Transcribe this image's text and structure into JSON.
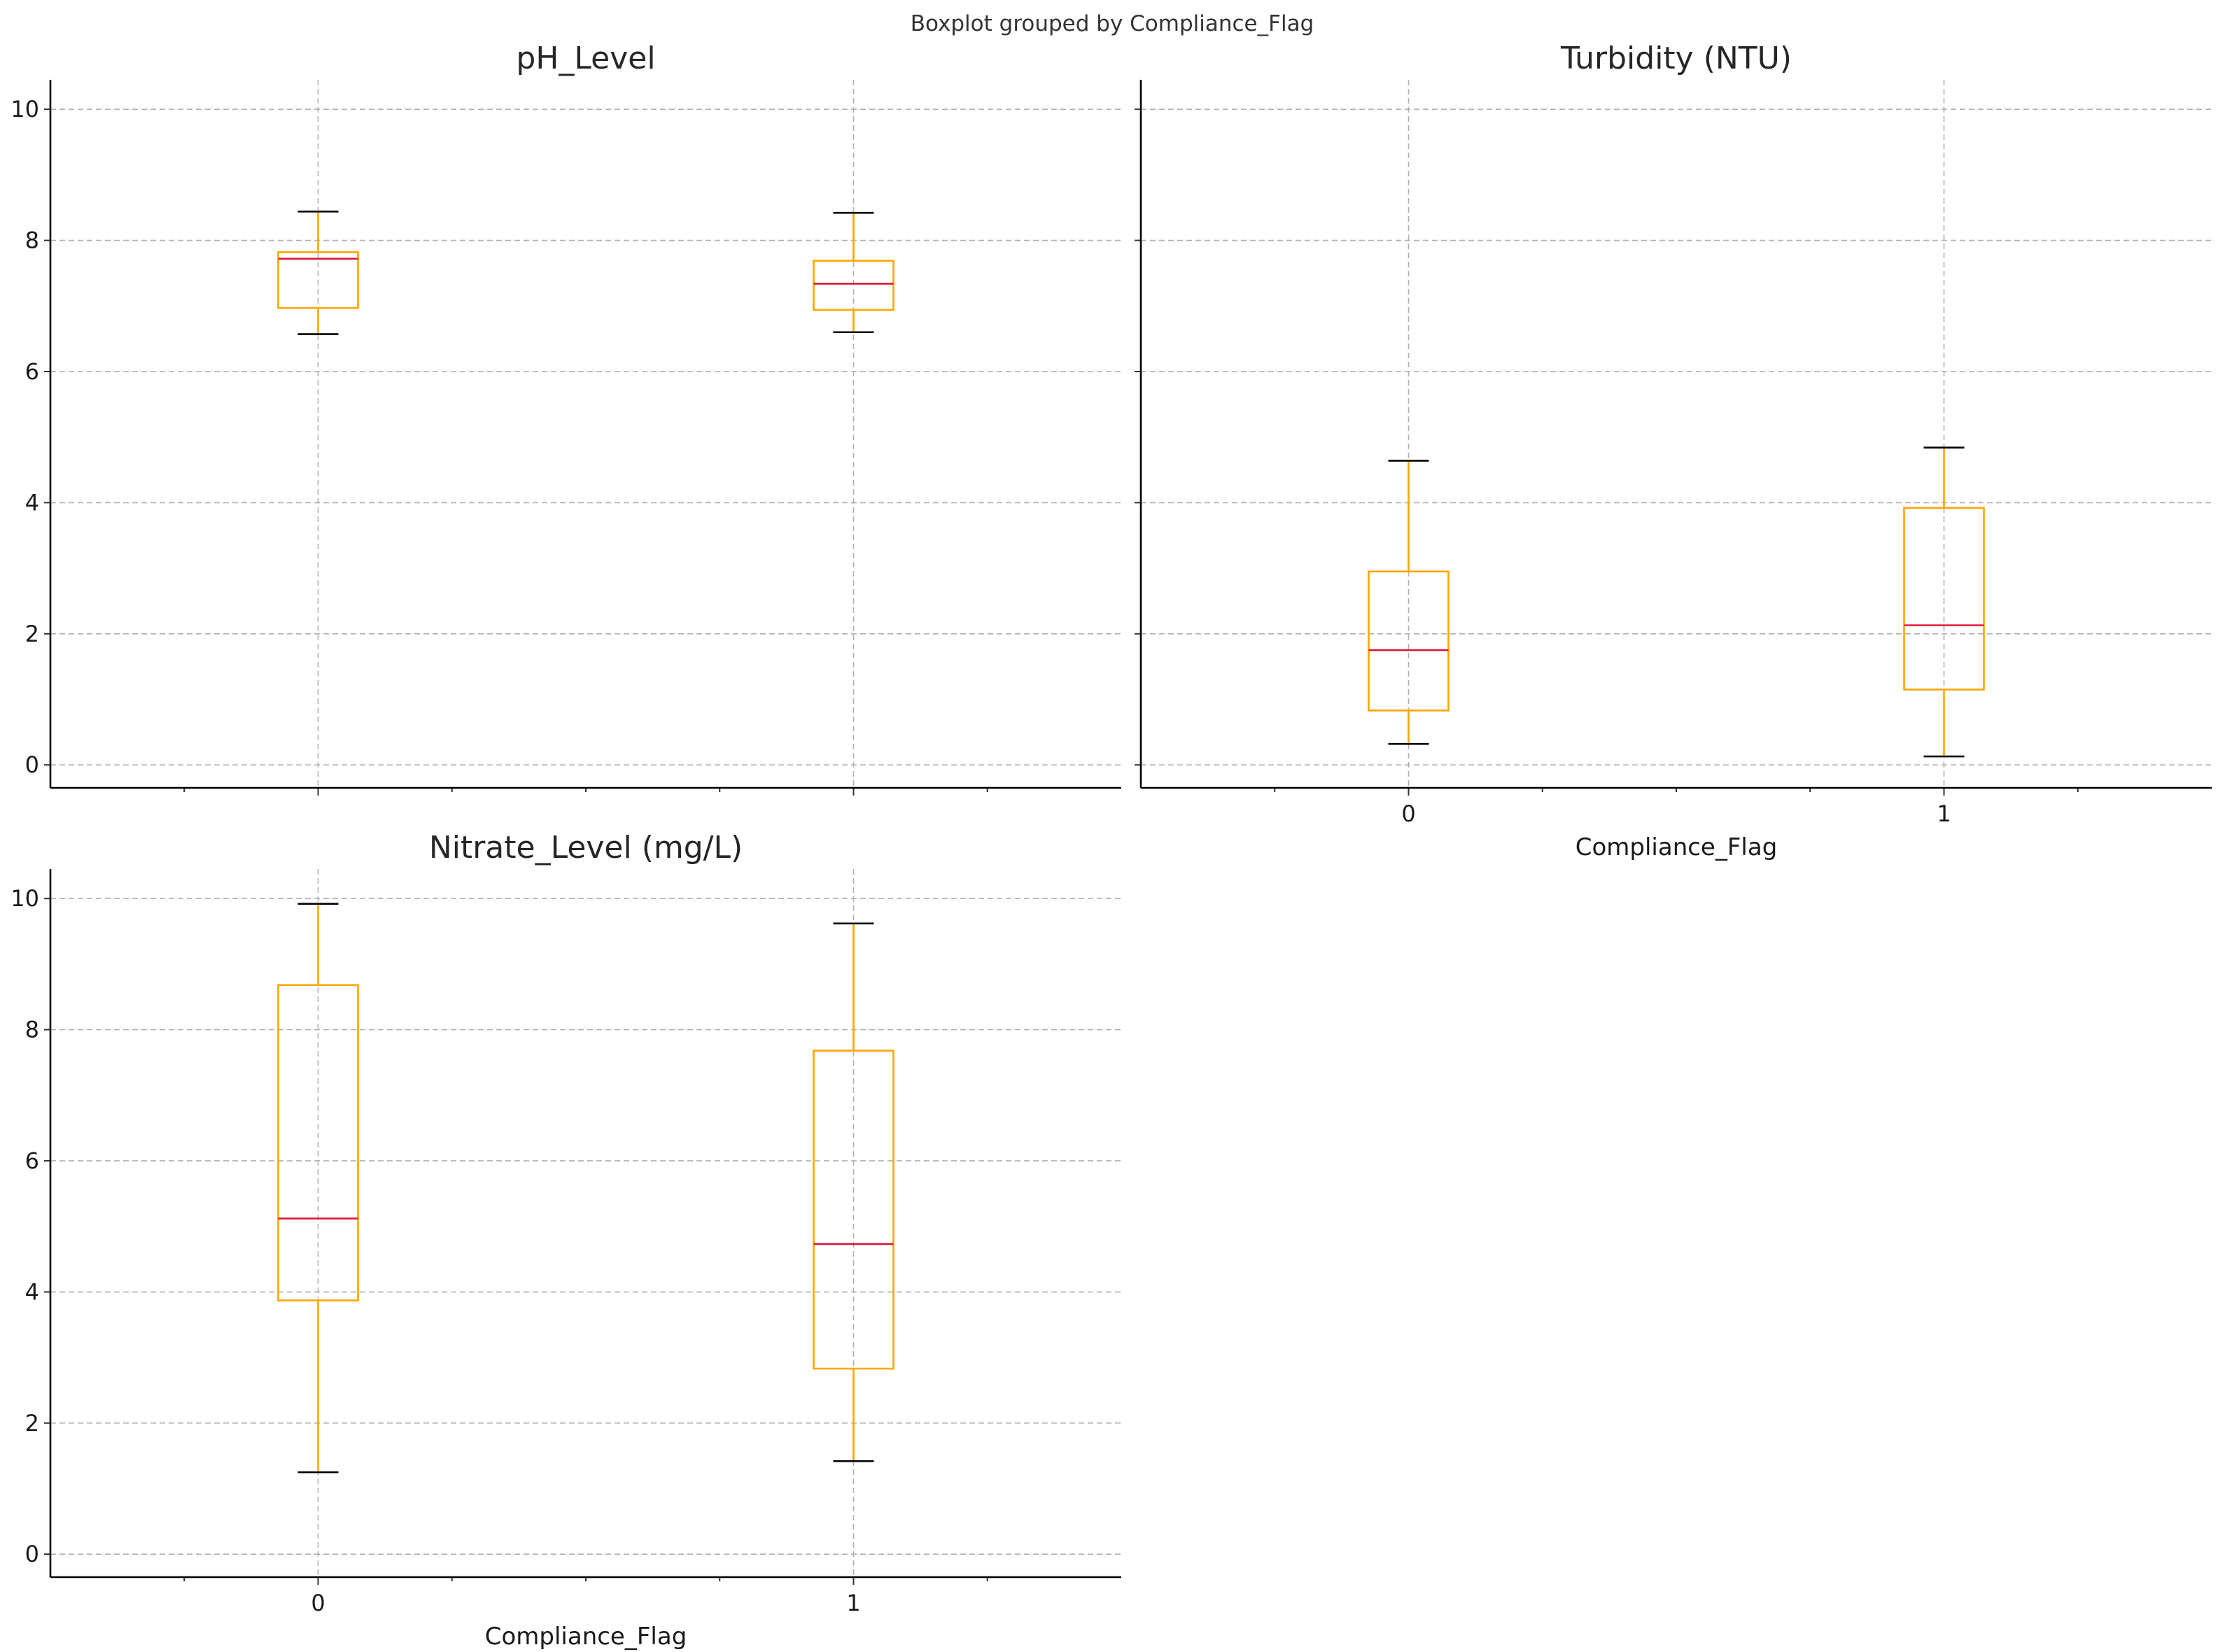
{
  "figure": {
    "suptitle": "Boxplot grouped by Compliance_Flag"
  },
  "chart_data": [
    {
      "type": "box",
      "title": "pH_Level",
      "xlabel": "",
      "categories": [
        "0",
        "1"
      ],
      "ylim": [
        -0.35,
        10.45
      ],
      "yticks": [
        0,
        2,
        4,
        6,
        8,
        10
      ],
      "grid": true,
      "show_x_ticklabels": false,
      "boxes": [
        {
          "category": "0",
          "whisker_low": 6.57,
          "q1": 6.97,
          "median": 7.72,
          "q3": 7.82,
          "whisker_high": 8.44
        },
        {
          "category": "1",
          "whisker_low": 6.6,
          "q1": 6.94,
          "median": 7.34,
          "q3": 7.69,
          "whisker_high": 8.42
        }
      ]
    },
    {
      "type": "box",
      "title": "Turbidity (NTU)",
      "xlabel": "Compliance_Flag",
      "categories": [
        "0",
        "1"
      ],
      "ylim": [
        -0.35,
        10.45
      ],
      "yticks": [
        0,
        2,
        4,
        6,
        8,
        10
      ],
      "grid": true,
      "show_x_ticklabels": true,
      "boxes": [
        {
          "category": "0",
          "whisker_low": 0.32,
          "q1": 0.83,
          "median": 1.75,
          "q3": 2.95,
          "whisker_high": 4.64
        },
        {
          "category": "1",
          "whisker_low": 0.13,
          "q1": 1.15,
          "median": 2.13,
          "q3": 3.92,
          "whisker_high": 4.84
        }
      ]
    },
    {
      "type": "box",
      "title": "Nitrate_Level (mg/L)",
      "xlabel": "Compliance_Flag",
      "categories": [
        "0",
        "1"
      ],
      "ylim": [
        -0.35,
        10.45
      ],
      "yticks": [
        0,
        2,
        4,
        6,
        8,
        10
      ],
      "grid": true,
      "show_x_ticklabels": true,
      "boxes": [
        {
          "category": "0",
          "whisker_low": 1.25,
          "q1": 3.87,
          "median": 5.12,
          "q3": 8.68,
          "whisker_high": 9.92
        },
        {
          "category": "1",
          "whisker_low": 1.42,
          "q1": 2.83,
          "median": 4.73,
          "q3": 7.68,
          "whisker_high": 9.62
        }
      ]
    }
  ],
  "colors": {
    "box": "#ffa500",
    "whisker": "#ffa500",
    "median": "#dc143c",
    "cap": "#000000"
  }
}
